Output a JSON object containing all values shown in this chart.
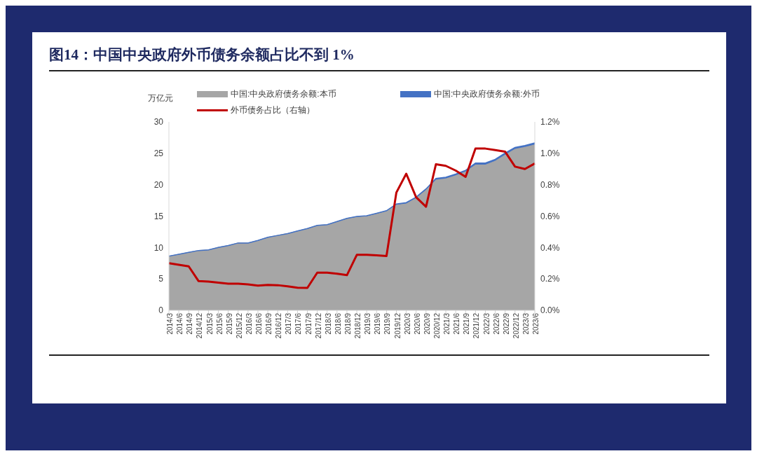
{
  "chart_data": {
    "type": "area",
    "title": "图14：中国中央政府外币债务余额占比不到 1%",
    "ylabel": "万亿元",
    "stacked": true,
    "legend": "top",
    "marker": "none",
    "line_style": "solid",
    "categories": [
      "2014/3",
      "2014/6",
      "2014/9",
      "2014/12",
      "2015/3",
      "2015/6",
      "2015/9",
      "2015/12",
      "2016/3",
      "2016/6",
      "2016/9",
      "2016/12",
      "2017/3",
      "2017/6",
      "2017/9",
      "2017/12",
      "2018/3",
      "2018/6",
      "2018/9",
      "2018/12",
      "2019/3",
      "2019/6",
      "2019/9",
      "2019/12",
      "2020/3",
      "2020/6",
      "2020/9",
      "2020/12",
      "2021/3",
      "2021/6",
      "2021/9",
      "2021/12",
      "2022/3",
      "2022/6",
      "2022/9",
      "2022/12",
      "2023/3",
      "2023/6"
    ],
    "ylim": [
      0,
      30
    ],
    "yticks": [
      0,
      5,
      10,
      15,
      20,
      25,
      30
    ],
    "y2lim": [
      0,
      1.2
    ],
    "y2ticks": [
      {
        "value": 0,
        "label": "0.0%"
      },
      {
        "value": 0.2,
        "label": "0.2%"
      },
      {
        "value": 0.4,
        "label": "0.4%"
      },
      {
        "value": 0.6,
        "label": "0.6%"
      },
      {
        "value": 0.8,
        "label": "0.8%"
      },
      {
        "value": 1.0,
        "label": "1.0%"
      },
      {
        "value": 1.2,
        "label": "1.2%"
      }
    ],
    "series": [
      {
        "name": "中国:中央政府债务余额:本币",
        "color": "#a6a6a6",
        "values": [
          8.6,
          8.9,
          9.2,
          9.5,
          9.6,
          10.0,
          10.3,
          10.7,
          10.7,
          11.1,
          11.6,
          11.9,
          12.2,
          12.6,
          13.0,
          13.5,
          13.6,
          14.1,
          14.6,
          14.9,
          15.0,
          15.4,
          15.8,
          16.8,
          17.0,
          17.9,
          19.2,
          20.8,
          21.0,
          21.5,
          22.1,
          23.2,
          23.2,
          23.8,
          24.8,
          25.7,
          26.0,
          26.4
        ]
      },
      {
        "name": "中国:中央政府债务余额:外币",
        "color": "#4472c4",
        "values": [
          0.03,
          0.03,
          0.03,
          0.02,
          0.02,
          0.02,
          0.02,
          0.02,
          0.02,
          0.02,
          0.02,
          0.02,
          0.02,
          0.02,
          0.02,
          0.03,
          0.03,
          0.03,
          0.03,
          0.05,
          0.05,
          0.05,
          0.06,
          0.13,
          0.15,
          0.13,
          0.13,
          0.2,
          0.2,
          0.19,
          0.19,
          0.24,
          0.24,
          0.24,
          0.25,
          0.24,
          0.24,
          0.25
        ]
      },
      {
        "name": "外币债务占比（右轴）",
        "type": "line",
        "axis": "y2",
        "color": "#c00000",
        "values": [
          0.3,
          0.29,
          0.28,
          0.186,
          0.183,
          0.176,
          0.17,
          0.17,
          0.165,
          0.157,
          0.162,
          0.16,
          0.153,
          0.144,
          0.143,
          0.24,
          0.24,
          0.233,
          0.224,
          0.353,
          0.353,
          0.35,
          0.346,
          0.75,
          0.87,
          0.72,
          0.66,
          0.93,
          0.92,
          0.89,
          0.85,
          1.03,
          1.03,
          1.02,
          1.01,
          0.915,
          0.9,
          0.935
        ]
      }
    ]
  }
}
